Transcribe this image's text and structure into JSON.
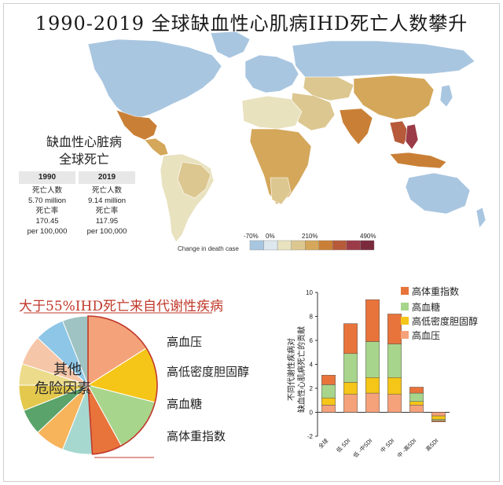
{
  "title": "1990-2019 全球缺血性心肌病IHD死亡人数攀升",
  "map_label": [
    "缺血性心脏病",
    "全球死亡"
  ],
  "stats": [
    {
      "year": "1990",
      "deaths_label": "死亡人数",
      "deaths": "5.70 million",
      "rate_label": "死亡率",
      "rate": "170.45",
      "rate_unit": "per 100,000"
    },
    {
      "year": "2019",
      "deaths_label": "死亡人数",
      "deaths": "9.14 million",
      "rate_label": "死亡率",
      "rate": "117.95",
      "rate_unit": "per 100,000"
    }
  ],
  "map_legend": {
    "ticks": [
      "-70%",
      "0%",
      "210%",
      "490%"
    ],
    "title": "Change in death case",
    "colors": [
      "#a9c6e0",
      "#dde7ee",
      "#e9e2bf",
      "#dcc790",
      "#d4a75a",
      "#c98036",
      "#b65a3a",
      "#9b3b47",
      "#7b2a3d"
    ]
  },
  "pie": {
    "title": "大于55%IHD死亡来自代谢性疾病",
    "other_label": [
      "其他",
      "危险因素"
    ],
    "labels": [
      "高血压",
      "高低密度胆固醇",
      "高血糖",
      "高体重指数"
    ],
    "slice_colors": [
      "#f4a27a",
      "#f5c518",
      "#a8d58c",
      "#e8743b",
      "#a6d8d0",
      "#f7b45a",
      "#5aa36a",
      "#e3c84d",
      "#ecdb8a",
      "#f6c6a8",
      "#8dc6e6",
      "#9fc3c3"
    ]
  },
  "bar_chart": {
    "ylabel": "不同代谢性疾病对缺血性心肌病死亡的贡献",
    "yticks": [
      "-2",
      "0",
      "2",
      "4",
      "6",
      "8",
      "10"
    ],
    "categories": [
      "全球",
      "低 SDI",
      "低 -中SDI",
      "中 SDI",
      "中 -高SDI",
      "高SDI"
    ],
    "legend": [
      "高体重指数",
      "高血糖",
      "高低密度胆固醇",
      "高血压"
    ],
    "colors": {
      "bmi": "#e8743b",
      "fpg": "#a8d58c",
      "ldl": "#f5c518",
      "sbp": "#f5a27a"
    }
  },
  "chart_data": {
    "type": "bar",
    "stacked": true,
    "categories": [
      "全球",
      "低 SDI",
      "低 -中SDI",
      "中 SDI",
      "中 -高SDI",
      "高SDI"
    ],
    "ylim": [
      -2,
      10
    ],
    "series": [
      {
        "name": "高血压",
        "values": [
          0.6,
          1.5,
          1.6,
          1.5,
          0.6,
          -0.3
        ]
      },
      {
        "name": "高低密度胆固醇",
        "values": [
          0.6,
          1.0,
          1.3,
          1.4,
          0.3,
          -0.3
        ]
      },
      {
        "name": "高血糖",
        "values": [
          1.1,
          2.4,
          3.0,
          2.8,
          0.7,
          -0.1
        ]
      },
      {
        "name": "高体重指数",
        "values": [
          0.8,
          2.5,
          3.5,
          2.5,
          0.5,
          -0.1
        ]
      }
    ]
  }
}
